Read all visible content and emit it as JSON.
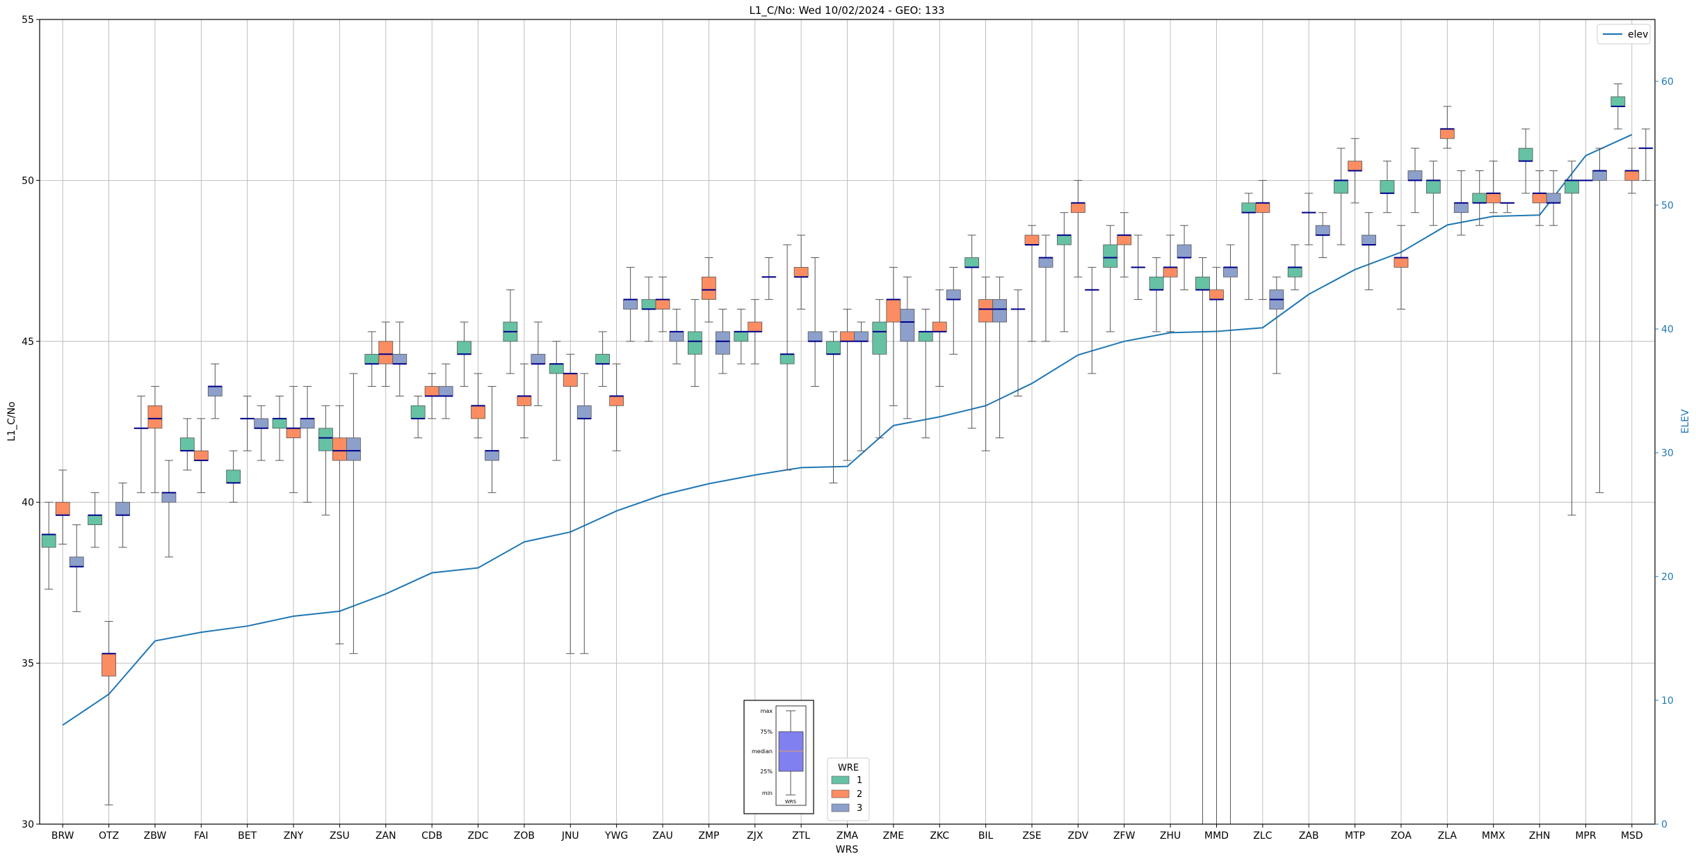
{
  "chart_data": {
    "type": "box",
    "title": "L1_C/No: Wed 10/02/2024 - GEO: 133",
    "xlabel": "WRS",
    "ylabel": "L1_C/No",
    "y2label": "ELEV",
    "ylim": [
      30,
      55
    ],
    "y2lim": [
      0,
      65
    ],
    "yticks": [
      30,
      35,
      40,
      45,
      50,
      55
    ],
    "y2ticks": [
      0,
      10,
      20,
      30,
      40,
      50,
      60
    ],
    "grid": true,
    "categories": [
      "BRW",
      "OTZ",
      "ZBW",
      "FAI",
      "BET",
      "ZNY",
      "ZSU",
      "ZAN",
      "CDB",
      "ZDC",
      "ZOB",
      "JNU",
      "YWG",
      "ZAU",
      "ZMP",
      "ZJX",
      "ZTL",
      "ZMA",
      "ZME",
      "ZKC",
      "BIL",
      "ZSE",
      "ZDV",
      "ZFW",
      "ZHU",
      "MMD",
      "ZLC",
      "ZAB",
      "MTP",
      "ZOA",
      "ZLA",
      "MMX",
      "ZHN",
      "MPR",
      "MSD"
    ],
    "elev_series": {
      "name": "elev",
      "color": "#1f77b4",
      "values": [
        8,
        10.5,
        14.8,
        15.5,
        16,
        16.8,
        17.2,
        18.6,
        20.3,
        20.7,
        22.8,
        23.6,
        25.3,
        26.6,
        27.5,
        28.2,
        28.8,
        28.9,
        32.2,
        32.9,
        33.8,
        35.6,
        37.9,
        39,
        39.7,
        39.8,
        40.1,
        42.8,
        44.8,
        46.2,
        48.4,
        49.1,
        49.2,
        54,
        55.7
      ]
    },
    "wre_colors": {
      "1": "#66c2a5",
      "2": "#fc8d62",
      "3": "#8da0cb"
    },
    "median_color": "#00008b",
    "boxes": [
      {
        "cat": "BRW",
        "wre": 1,
        "whislo": 37.3,
        "q1": 38.6,
        "med": 39,
        "q3": 39,
        "whishi": 40
      },
      {
        "cat": "BRW",
        "wre": 2,
        "whislo": 38.7,
        "q1": 39.6,
        "med": 39.6,
        "q3": 40,
        "whishi": 41
      },
      {
        "cat": "BRW",
        "wre": 3,
        "whislo": 36.6,
        "q1": 38,
        "med": 38,
        "q3": 38.3,
        "whishi": 39.3
      },
      {
        "cat": "OTZ",
        "wre": 1,
        "whislo": 38.6,
        "q1": 39.3,
        "med": 39.6,
        "q3": 39.6,
        "whishi": 40.3
      },
      {
        "cat": "OTZ",
        "wre": 2,
        "whislo": 30.6,
        "q1": 34.6,
        "med": 35.3,
        "q3": 35.3,
        "whishi": 36.3
      },
      {
        "cat": "OTZ",
        "wre": 3,
        "whislo": 38.6,
        "q1": 39.6,
        "med": 39.6,
        "q3": 40,
        "whishi": 40.6
      },
      {
        "cat": "ZBW",
        "wre": 1,
        "whislo": 40.3,
        "q1": 42.3,
        "med": 42.3,
        "q3": 42.3,
        "whishi": 43.3
      },
      {
        "cat": "ZBW",
        "wre": 2,
        "whislo": 40.3,
        "q1": 42.3,
        "med": 42.6,
        "q3": 43,
        "whishi": 43.6
      },
      {
        "cat": "ZBW",
        "wre": 3,
        "whislo": 38.3,
        "q1": 40,
        "med": 40.3,
        "q3": 40.3,
        "whishi": 41.3
      },
      {
        "cat": "FAI",
        "wre": 1,
        "whislo": 41,
        "q1": 41.6,
        "med": 41.6,
        "q3": 42,
        "whishi": 42.6
      },
      {
        "cat": "FAI",
        "wre": 2,
        "whislo": 40.3,
        "q1": 41.3,
        "med": 41.3,
        "q3": 41.6,
        "whishi": 42.6
      },
      {
        "cat": "FAI",
        "wre": 3,
        "whislo": 42.6,
        "q1": 43.3,
        "med": 43.6,
        "q3": 43.6,
        "whishi": 44.3
      },
      {
        "cat": "BET",
        "wre": 1,
        "whislo": 40,
        "q1": 40.6,
        "med": 40.6,
        "q3": 41,
        "whishi": 41.6
      },
      {
        "cat": "BET",
        "wre": 2,
        "whislo": 41.6,
        "q1": 42.6,
        "med": 42.6,
        "q3": 42.6,
        "whishi": 43.3
      },
      {
        "cat": "BET",
        "wre": 3,
        "whislo": 41.3,
        "q1": 42.3,
        "med": 42.3,
        "q3": 42.6,
        "whishi": 43
      },
      {
        "cat": "ZNY",
        "wre": 1,
        "whislo": 41.3,
        "q1": 42.3,
        "med": 42.6,
        "q3": 42.6,
        "whishi": 43.3
      },
      {
        "cat": "ZNY",
        "wre": 2,
        "whislo": 40.3,
        "q1": 42,
        "med": 42.3,
        "q3": 42.3,
        "whishi": 43.6
      },
      {
        "cat": "ZNY",
        "wre": 3,
        "whislo": 40,
        "q1": 42.3,
        "med": 42.6,
        "q3": 42.6,
        "whishi": 43.6
      },
      {
        "cat": "ZSU",
        "wre": 1,
        "whislo": 39.6,
        "q1": 41.6,
        "med": 42,
        "q3": 42.3,
        "whishi": 43
      },
      {
        "cat": "ZSU",
        "wre": 2,
        "whislo": 35.6,
        "q1": 41.3,
        "med": 41.6,
        "q3": 42,
        "whishi": 43
      },
      {
        "cat": "ZSU",
        "wre": 3,
        "whislo": 35.3,
        "q1": 41.3,
        "med": 41.6,
        "q3": 42,
        "whishi": 44
      },
      {
        "cat": "ZAN",
        "wre": 1,
        "whislo": 43.6,
        "q1": 44.3,
        "med": 44.3,
        "q3": 44.6,
        "whishi": 45.3
      },
      {
        "cat": "ZAN",
        "wre": 2,
        "whislo": 43.6,
        "q1": 44.3,
        "med": 44.6,
        "q3": 45,
        "whishi": 45.6
      },
      {
        "cat": "ZAN",
        "wre": 3,
        "whislo": 43.3,
        "q1": 44.3,
        "med": 44.3,
        "q3": 44.6,
        "whishi": 45.6
      },
      {
        "cat": "CDB",
        "wre": 1,
        "whislo": 42,
        "q1": 42.6,
        "med": 42.6,
        "q3": 43,
        "whishi": 43.3
      },
      {
        "cat": "CDB",
        "wre": 2,
        "whislo": 42.6,
        "q1": 43.3,
        "med": 43.3,
        "q3": 43.6,
        "whishi": 44
      },
      {
        "cat": "CDB",
        "wre": 3,
        "whislo": 42.6,
        "q1": 43.3,
        "med": 43.3,
        "q3": 43.6,
        "whishi": 44.3
      },
      {
        "cat": "ZDC",
        "wre": 1,
        "whislo": 43.6,
        "q1": 44.6,
        "med": 44.6,
        "q3": 45,
        "whishi": 45.6
      },
      {
        "cat": "ZDC",
        "wre": 2,
        "whislo": 42,
        "q1": 42.6,
        "med": 43,
        "q3": 43,
        "whishi": 44
      },
      {
        "cat": "ZDC",
        "wre": 3,
        "whislo": 40.3,
        "q1": 41.3,
        "med": 41.6,
        "q3": 41.6,
        "whishi": 43.6
      },
      {
        "cat": "ZOB",
        "wre": 1,
        "whislo": 44,
        "q1": 45,
        "med": 45.3,
        "q3": 45.6,
        "whishi": 46.6
      },
      {
        "cat": "ZOB",
        "wre": 2,
        "whislo": 42,
        "q1": 43,
        "med": 43.3,
        "q3": 43.3,
        "whishi": 44.3
      },
      {
        "cat": "ZOB",
        "wre": 3,
        "whislo": 43,
        "q1": 44.3,
        "med": 44.3,
        "q3": 44.6,
        "whishi": 45.6
      },
      {
        "cat": "JNU",
        "wre": 1,
        "whislo": 41.3,
        "q1": 44,
        "med": 44.3,
        "q3": 44.3,
        "whishi": 45
      },
      {
        "cat": "JNU",
        "wre": 2,
        "whislo": 35.3,
        "q1": 43.6,
        "med": 44,
        "q3": 44,
        "whishi": 44.6
      },
      {
        "cat": "JNU",
        "wre": 3,
        "whislo": 35.3,
        "q1": 42.6,
        "med": 42.6,
        "q3": 43,
        "whishi": 44
      },
      {
        "cat": "YWG",
        "wre": 1,
        "whislo": 43.6,
        "q1": 44.3,
        "med": 44.3,
        "q3": 44.6,
        "whishi": 45.3
      },
      {
        "cat": "YWG",
        "wre": 2,
        "whislo": 41.6,
        "q1": 43,
        "med": 43.3,
        "q3": 43.3,
        "whishi": 44.3
      },
      {
        "cat": "YWG",
        "wre": 3,
        "whislo": 45,
        "q1": 46,
        "med": 46.3,
        "q3": 46.3,
        "whishi": 47.3
      },
      {
        "cat": "ZAU",
        "wre": 1,
        "whislo": 45,
        "q1": 46,
        "med": 46,
        "q3": 46.3,
        "whishi": 47
      },
      {
        "cat": "ZAU",
        "wre": 2,
        "whislo": 45.3,
        "q1": 46,
        "med": 46.3,
        "q3": 46.3,
        "whishi": 47
      },
      {
        "cat": "ZAU",
        "wre": 3,
        "whislo": 44.3,
        "q1": 45,
        "med": 45.3,
        "q3": 45.3,
        "whishi": 46
      },
      {
        "cat": "ZMP",
        "wre": 1,
        "whislo": 43.6,
        "q1": 44.6,
        "med": 45,
        "q3": 45.3,
        "whishi": 46.3
      },
      {
        "cat": "ZMP",
        "wre": 2,
        "whislo": 45.6,
        "q1": 46.3,
        "med": 46.6,
        "q3": 47,
        "whishi": 47.6
      },
      {
        "cat": "ZMP",
        "wre": 3,
        "whislo": 44,
        "q1": 44.6,
        "med": 45,
        "q3": 45.3,
        "whishi": 46
      },
      {
        "cat": "ZJX",
        "wre": 1,
        "whislo": 44.3,
        "q1": 45,
        "med": 45.3,
        "q3": 45.3,
        "whishi": 46
      },
      {
        "cat": "ZJX",
        "wre": 2,
        "whislo": 44.3,
        "q1": 45.3,
        "med": 45.3,
        "q3": 45.6,
        "whishi": 46.3
      },
      {
        "cat": "ZJX",
        "wre": 3,
        "whislo": 46.3,
        "q1": 47,
        "med": 47,
        "q3": 47,
        "whishi": 47.6
      },
      {
        "cat": "ZTL",
        "wre": 1,
        "whislo": 41,
        "q1": 44.3,
        "med": 44.6,
        "q3": 44.6,
        "whishi": 48
      },
      {
        "cat": "ZTL",
        "wre": 2,
        "whislo": 46,
        "q1": 47,
        "med": 47,
        "q3": 47.3,
        "whishi": 48.3
      },
      {
        "cat": "ZTL",
        "wre": 3,
        "whislo": 43.6,
        "q1": 45,
        "med": 45,
        "q3": 45.3,
        "whishi": 47.6
      },
      {
        "cat": "ZMA",
        "wre": 1,
        "whislo": 40.6,
        "q1": 44.6,
        "med": 44.6,
        "q3": 45,
        "whishi": 45.3
      },
      {
        "cat": "ZMA",
        "wre": 2,
        "whislo": 41.3,
        "q1": 45,
        "med": 45,
        "q3": 45.3,
        "whishi": 46
      },
      {
        "cat": "ZMA",
        "wre": 3,
        "whislo": 41.6,
        "q1": 45,
        "med": 45,
        "q3": 45.3,
        "whishi": 45.6
      },
      {
        "cat": "ZME",
        "wre": 1,
        "whislo": 42,
        "q1": 44.6,
        "med": 45.3,
        "q3": 45.6,
        "whishi": 46.3
      },
      {
        "cat": "ZME",
        "wre": 2,
        "whislo": 43,
        "q1": 45.6,
        "med": 46.3,
        "q3": 46.3,
        "whishi": 47.3
      },
      {
        "cat": "ZME",
        "wre": 3,
        "whislo": 42.6,
        "q1": 45,
        "med": 45.6,
        "q3": 46,
        "whishi": 47
      },
      {
        "cat": "ZKC",
        "wre": 1,
        "whislo": 42,
        "q1": 45,
        "med": 45.3,
        "q3": 45.3,
        "whishi": 46
      },
      {
        "cat": "ZKC",
        "wre": 2,
        "whislo": 43.6,
        "q1": 45.3,
        "med": 45.3,
        "q3": 45.6,
        "whishi": 46.6
      },
      {
        "cat": "ZKC",
        "wre": 3,
        "whislo": 44.6,
        "q1": 46.3,
        "med": 46.3,
        "q3": 46.6,
        "whishi": 47.3
      },
      {
        "cat": "BIL",
        "wre": 1,
        "whislo": 42.3,
        "q1": 47.3,
        "med": 47.3,
        "q3": 47.6,
        "whishi": 48.3
      },
      {
        "cat": "BIL",
        "wre": 2,
        "whislo": 41.6,
        "q1": 45.6,
        "med": 46,
        "q3": 46.3,
        "whishi": 47
      },
      {
        "cat": "BIL",
        "wre": 3,
        "whislo": 42,
        "q1": 45.6,
        "med": 46,
        "q3": 46.3,
        "whishi": 47
      },
      {
        "cat": "ZSE",
        "wre": 1,
        "whislo": 43.3,
        "q1": 46,
        "med": 46,
        "q3": 46,
        "whishi": 46.6
      },
      {
        "cat": "ZSE",
        "wre": 2,
        "whislo": 45,
        "q1": 48,
        "med": 48,
        "q3": 48.3,
        "whishi": 48.6
      },
      {
        "cat": "ZSE",
        "wre": 3,
        "whislo": 45,
        "q1": 47.3,
        "med": 47.6,
        "q3": 47.6,
        "whishi": 48.3
      },
      {
        "cat": "ZDV",
        "wre": 1,
        "whislo": 45.3,
        "q1": 48,
        "med": 48.3,
        "q3": 48.3,
        "whishi": 49
      },
      {
        "cat": "ZDV",
        "wre": 2,
        "whislo": 47,
        "q1": 49,
        "med": 49.3,
        "q3": 49.3,
        "whishi": 50
      },
      {
        "cat": "ZDV",
        "wre": 3,
        "whislo": 44,
        "q1": 46.6,
        "med": 46.6,
        "q3": 46.6,
        "whishi": 47.3
      },
      {
        "cat": "ZFW",
        "wre": 1,
        "whislo": 45.3,
        "q1": 47.3,
        "med": 47.6,
        "q3": 48,
        "whishi": 48.6
      },
      {
        "cat": "ZFW",
        "wre": 2,
        "whislo": 47,
        "q1": 48,
        "med": 48.3,
        "q3": 48.3,
        "whishi": 49
      },
      {
        "cat": "ZFW",
        "wre": 3,
        "whislo": 46.3,
        "q1": 47.3,
        "med": 47.3,
        "q3": 47.3,
        "whishi": 48.3
      },
      {
        "cat": "ZHU",
        "wre": 1,
        "whislo": 45.3,
        "q1": 46.6,
        "med": 46.6,
        "q3": 47,
        "whishi": 47.6
      },
      {
        "cat": "ZHU",
        "wre": 2,
        "whislo": 45.3,
        "q1": 47,
        "med": 47.3,
        "q3": 47.3,
        "whishi": 48.3
      },
      {
        "cat": "ZHU",
        "wre": 3,
        "whislo": 46.6,
        "q1": 47.6,
        "med": 47.6,
        "q3": 48,
        "whishi": 48.6
      },
      {
        "cat": "MMD",
        "wre": 1,
        "whislo": 30,
        "q1": 46.6,
        "med": 46.6,
        "q3": 47,
        "whishi": 47.6
      },
      {
        "cat": "MMD",
        "wre": 2,
        "whislo": 30,
        "q1": 46.3,
        "med": 46.3,
        "q3": 46.6,
        "whishi": 47.3
      },
      {
        "cat": "MMD",
        "wre": 3,
        "whislo": 30,
        "q1": 47,
        "med": 47.3,
        "q3": 47.3,
        "whishi": 48
      },
      {
        "cat": "ZLC",
        "wre": 1,
        "whislo": 46.3,
        "q1": 49,
        "med": 49,
        "q3": 49.3,
        "whishi": 49.6
      },
      {
        "cat": "ZLC",
        "wre": 2,
        "whislo": 46.3,
        "q1": 49,
        "med": 49.3,
        "q3": 49.3,
        "whishi": 50
      },
      {
        "cat": "ZLC",
        "wre": 3,
        "whislo": 44,
        "q1": 46,
        "med": 46.3,
        "q3": 46.6,
        "whishi": 47
      },
      {
        "cat": "ZAB",
        "wre": 1,
        "whislo": 46.6,
        "q1": 47,
        "med": 47.3,
        "q3": 47.3,
        "whishi": 48
      },
      {
        "cat": "ZAB",
        "wre": 2,
        "whislo": 48,
        "q1": 49,
        "med": 49,
        "q3": 49,
        "whishi": 49.6
      },
      {
        "cat": "ZAB",
        "wre": 3,
        "whislo": 47.6,
        "q1": 48.3,
        "med": 48.3,
        "q3": 48.6,
        "whishi": 49
      },
      {
        "cat": "MTP",
        "wre": 1,
        "whislo": 48,
        "q1": 49.6,
        "med": 50,
        "q3": 50,
        "whishi": 51
      },
      {
        "cat": "MTP",
        "wre": 2,
        "whislo": 49.3,
        "q1": 50.3,
        "med": 50.3,
        "q3": 50.6,
        "whishi": 51.3
      },
      {
        "cat": "MTP",
        "wre": 3,
        "whislo": 46.6,
        "q1": 48,
        "med": 48,
        "q3": 48.3,
        "whishi": 49
      },
      {
        "cat": "ZOA",
        "wre": 1,
        "whislo": 49,
        "q1": 49.6,
        "med": 49.6,
        "q3": 50,
        "whishi": 50.6
      },
      {
        "cat": "ZOA",
        "wre": 2,
        "whislo": 46,
        "q1": 47.3,
        "med": 47.6,
        "q3": 47.6,
        "whishi": 48.6
      },
      {
        "cat": "ZOA",
        "wre": 3,
        "whislo": 49,
        "q1": 50,
        "med": 50,
        "q3": 50.3,
        "whishi": 51
      },
      {
        "cat": "ZLA",
        "wre": 1,
        "whislo": 48.6,
        "q1": 49.6,
        "med": 50,
        "q3": 50,
        "whishi": 50.6
      },
      {
        "cat": "ZLA",
        "wre": 2,
        "whislo": 51,
        "q1": 51.3,
        "med": 51.6,
        "q3": 51.6,
        "whishi": 52.3
      },
      {
        "cat": "ZLA",
        "wre": 3,
        "whislo": 48.3,
        "q1": 49,
        "med": 49.3,
        "q3": 49.3,
        "whishi": 50.3
      },
      {
        "cat": "MMX",
        "wre": 1,
        "whislo": 48.6,
        "q1": 49.3,
        "med": 49.3,
        "q3": 49.6,
        "whishi": 50.3
      },
      {
        "cat": "MMX",
        "wre": 2,
        "whislo": 49,
        "q1": 49.3,
        "med": 49.6,
        "q3": 49.6,
        "whishi": 50.6
      },
      {
        "cat": "MMX",
        "wre": 3,
        "whislo": 49,
        "q1": 49.3,
        "med": 49.3,
        "q3": 49.3,
        "whishi": 49.3
      },
      {
        "cat": "ZHN",
        "wre": 1,
        "whislo": 49.6,
        "q1": 50.6,
        "med": 50.6,
        "q3": 51,
        "whishi": 51.6
      },
      {
        "cat": "ZHN",
        "wre": 2,
        "whislo": 48.6,
        "q1": 49.3,
        "med": 49.6,
        "q3": 49.6,
        "whishi": 50.3
      },
      {
        "cat": "ZHN",
        "wre": 3,
        "whislo": 48.6,
        "q1": 49.3,
        "med": 49.3,
        "q3": 49.6,
        "whishi": 50.3
      },
      {
        "cat": "MPR",
        "wre": 1,
        "whislo": 39.6,
        "q1": 49.6,
        "med": 50,
        "q3": 50,
        "whishi": 50.6
      },
      {
        "cat": "MPR",
        "wre": 2,
        "whislo": 50,
        "q1": 50,
        "med": 50,
        "q3": 50,
        "whishi": 50
      },
      {
        "cat": "MPR",
        "wre": 3,
        "whislo": 40.3,
        "q1": 50,
        "med": 50.3,
        "q3": 50.3,
        "whishi": 51
      },
      {
        "cat": "MSD",
        "wre": 1,
        "whislo": 51.6,
        "q1": 52.3,
        "med": 52.3,
        "q3": 52.6,
        "whishi": 53
      },
      {
        "cat": "MSD",
        "wre": 2,
        "whislo": 49.6,
        "q1": 50,
        "med": 50.3,
        "q3": 50.3,
        "whishi": 51
      },
      {
        "cat": "MSD",
        "wre": 3,
        "whislo": 50,
        "q1": 51,
        "med": 51,
        "q3": 51,
        "whishi": 51.6
      }
    ],
    "legend_right": {
      "label": "elev",
      "placement": "upper-right"
    },
    "legend_wre": {
      "title": "WRE",
      "entries": [
        "1",
        "2",
        "3"
      ],
      "placement": "lower-center"
    },
    "inset_key": {
      "labels": [
        "max",
        "75%",
        "median",
        "25%",
        "min"
      ],
      "xtick": "WRS",
      "fill": "#8080f0"
    }
  }
}
